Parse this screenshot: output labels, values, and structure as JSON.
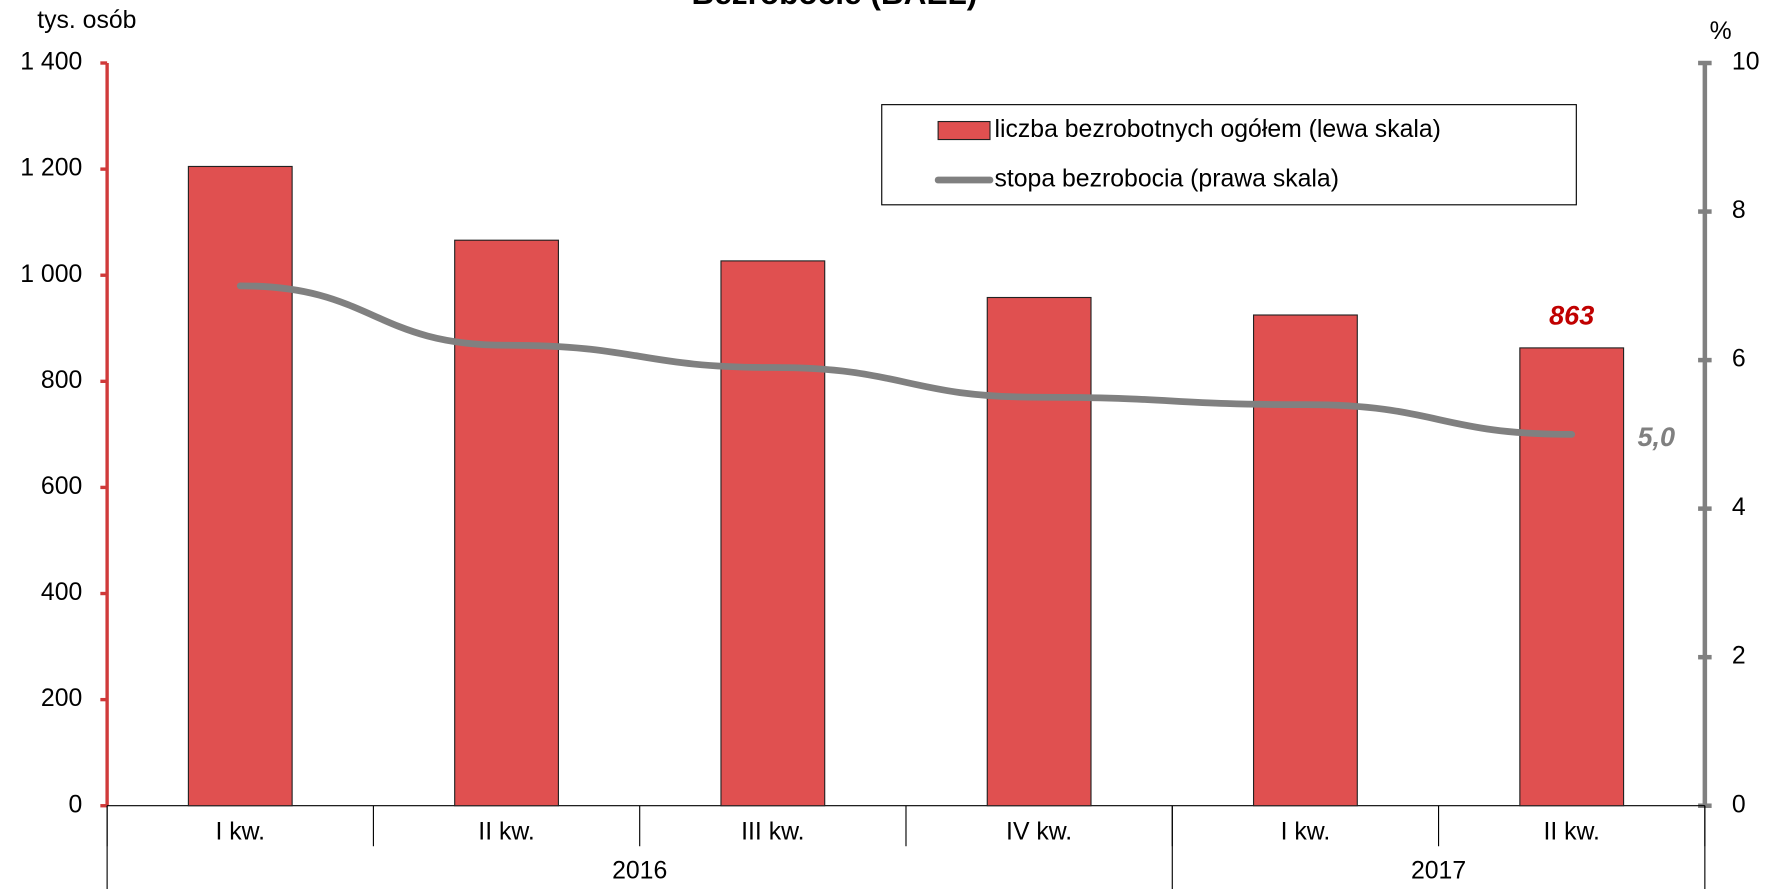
{
  "chart_data": {
    "type": "bar",
    "title": "Bezrobocie (BAEL)",
    "y_label": "tys. osób",
    "y2_label": "%",
    "categories": [
      "I kw.",
      "II kw.",
      "III kw.",
      "IV kw.",
      "I kw.",
      "II kw."
    ],
    "groups": [
      {
        "name": "2016",
        "span": 4
      },
      {
        "name": "2017",
        "span": 2
      }
    ],
    "series": [
      {
        "name": "liczba bezrobotnych ogółem (lewa skala)",
        "type": "bar",
        "axis": "y",
        "color": "#e05050",
        "values": [
          1205,
          1066,
          1027,
          958,
          925,
          863
        ],
        "label_color": "#c00000"
      },
      {
        "name": "stopa bezrobocia (prawa skala)",
        "type": "line",
        "axis": "y2",
        "color": "#808080",
        "values": [
          7.0,
          6.2,
          5.9,
          5.5,
          5.4,
          5.0
        ],
        "value_labels": [
          null,
          null,
          null,
          null,
          null,
          "5,0"
        ]
      }
    ],
    "ylim": [
      0,
      1400
    ],
    "yticks": [
      0,
      200,
      400,
      600,
      800,
      {
        "value": 1000,
        "label": "1 000"
      },
      {
        "value": 1200,
        "label": "1 200"
      },
      {
        "value": 1400,
        "label": "1 400"
      }
    ],
    "y2lim": [
      0,
      10
    ],
    "y2ticks": [
      0,
      2,
      4,
      6,
      8,
      10
    ],
    "y_axis_color": "#d03a3a",
    "y2_axis_color": "#808080",
    "grid": false
  }
}
